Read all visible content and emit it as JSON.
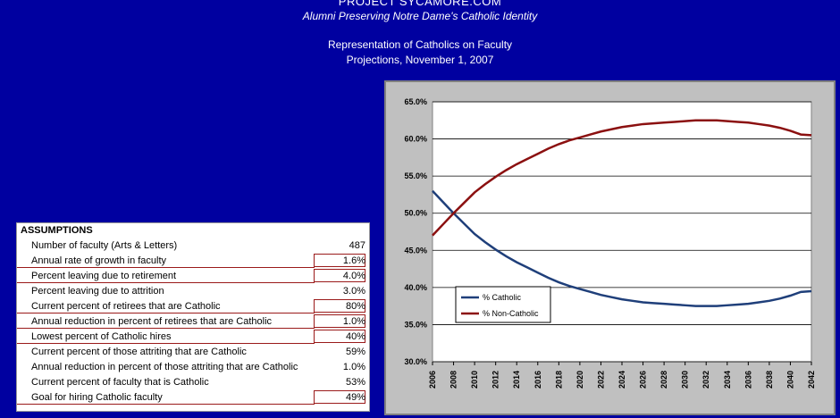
{
  "header": {
    "site": "PROJECT SYCAMORE.COM",
    "tagline": "Alumni Preserving Notre Dame's Catholic Identity",
    "report_title": "Representation of Catholics on Faculty",
    "report_date": "Projections, November 1, 2007"
  },
  "assumptions": {
    "title": "ASSUMPTIONS",
    "rows": [
      {
        "label": "Number of faculty (Arts & Letters)",
        "value": "487",
        "input": false
      },
      {
        "label": "Annual rate of growth in faculty",
        "value": "1.6%",
        "input": true
      },
      {
        "label": "Percent leaving due to retirement",
        "value": "4.0%",
        "input": true
      },
      {
        "label": "Percent leaving due to attrition",
        "value": "3.0%",
        "input": false
      },
      {
        "label": "Current percent of retirees that are Catholic",
        "value": "80%",
        "input": true
      },
      {
        "label": "Annual reduction in percent of retirees that are Catholic",
        "value": "1.0%",
        "input": true
      },
      {
        "label": "Lowest percent of Catholic hires",
        "value": "40%",
        "input": true
      },
      {
        "label": "Current percent of those attriting that are Catholic",
        "value": "59%",
        "input": false
      },
      {
        "label": "Annual reduction in percent of those attriting that are Catholic",
        "value": "1.0%",
        "input": false
      },
      {
        "label": "Current percent of faculty that is Catholic",
        "value": "53%",
        "input": false
      },
      {
        "label": "Goal for hiring Catholic faculty",
        "value": "49%",
        "input": true
      }
    ]
  },
  "chart_data": {
    "type": "line",
    "x": [
      2006,
      2007,
      2008,
      2009,
      2010,
      2011,
      2012,
      2013,
      2014,
      2015,
      2016,
      2017,
      2018,
      2019,
      2020,
      2021,
      2022,
      2023,
      2024,
      2025,
      2026,
      2027,
      2028,
      2029,
      2030,
      2031,
      2032,
      2033,
      2034,
      2035,
      2036,
      2037,
      2038,
      2039,
      2040,
      2041,
      2042
    ],
    "x_tick_labels": [
      "2006",
      "2008",
      "2010",
      "2012",
      "2014",
      "2016",
      "2018",
      "2020",
      "2022",
      "2024",
      "2026",
      "2028",
      "2030",
      "2032",
      "2034",
      "2036",
      "2038",
      "2040",
      "2042"
    ],
    "ylim": [
      30,
      65
    ],
    "y_tick_labels": [
      "30.0%",
      "35.0%",
      "40.0%",
      "45.0%",
      "50.0%",
      "55.0%",
      "60.0%",
      "65.0%"
    ],
    "grid": true,
    "legend_position": "bottom-left",
    "series": [
      {
        "name": "% Catholic",
        "color": "#1f3f7a",
        "values": [
          53.0,
          51.5,
          50.0,
          48.6,
          47.2,
          46.1,
          45.1,
          44.2,
          43.4,
          42.7,
          42.0,
          41.3,
          40.7,
          40.2,
          39.8,
          39.4,
          39.0,
          38.7,
          38.4,
          38.2,
          38.0,
          37.9,
          37.8,
          37.7,
          37.6,
          37.5,
          37.5,
          37.5,
          37.6,
          37.7,
          37.8,
          38.0,
          38.2,
          38.5,
          38.9,
          39.4,
          39.5
        ]
      },
      {
        "name": "% Non-Catholic",
        "color": "#8b1010",
        "values": [
          47.0,
          48.5,
          50.0,
          51.4,
          52.8,
          53.9,
          54.9,
          55.8,
          56.6,
          57.3,
          58.0,
          58.7,
          59.3,
          59.8,
          60.2,
          60.6,
          61.0,
          61.3,
          61.6,
          61.8,
          62.0,
          62.1,
          62.2,
          62.3,
          62.4,
          62.5,
          62.5,
          62.5,
          62.4,
          62.3,
          62.2,
          62.0,
          61.8,
          61.5,
          61.1,
          60.6,
          60.5
        ]
      }
    ]
  }
}
